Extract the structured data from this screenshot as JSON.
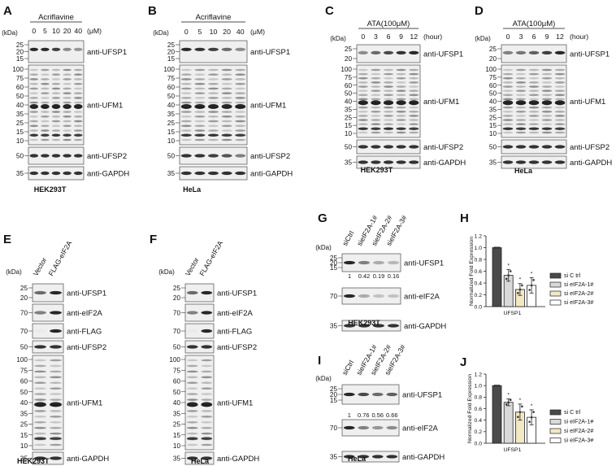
{
  "panels": {
    "A": {
      "letter": "A",
      "treatment": "Acriflavine",
      "lanes": [
        "0",
        "5",
        "10",
        "20",
        "40"
      ],
      "unit": "(μM)",
      "kda": "(kDa)",
      "cell_line": "HEK293T",
      "blots": [
        {
          "antibody": "anti-UFSP1",
          "markers": [
            "25",
            "20",
            "15"
          ]
        },
        {
          "antibody": "anti-UFM1",
          "markers": [
            "100",
            "75",
            "60",
            "50",
            "40",
            "35",
            "25",
            "15",
            "10"
          ]
        },
        {
          "antibody": "anti-UFSP2",
          "markers": [
            "50"
          ]
        },
        {
          "antibody": "anti-GAPDH",
          "markers": [
            "35"
          ]
        }
      ]
    },
    "B": {
      "letter": "B",
      "treatment": "Acriflavine",
      "lanes": [
        "0",
        "5",
        "10",
        "20",
        "40"
      ],
      "unit": "(μM)",
      "kda": "(kDa)",
      "cell_line": "HeLa",
      "blots": [
        {
          "antibody": "anti-UFSP1",
          "markers": [
            "25",
            "20",
            "15"
          ]
        },
        {
          "antibody": "anti-UFM1",
          "markers": [
            "100",
            "75",
            "60",
            "50",
            "40",
            "35",
            "25",
            "15",
            "10"
          ]
        },
        {
          "antibody": "anti-UFSP2",
          "markers": [
            "50"
          ]
        },
        {
          "antibody": "anti-GAPDH",
          "markers": [
            "35"
          ]
        }
      ]
    },
    "C": {
      "letter": "C",
      "treatment": "ATA(100μM)",
      "lanes": [
        "0",
        "3",
        "6",
        "9",
        "12"
      ],
      "unit": "(hour)",
      "kda": "(kDa)",
      "cell_line": "HEK293T",
      "blots": [
        {
          "antibody": "anti-UFSP1",
          "markers": [
            "25",
            "20"
          ]
        },
        {
          "antibody": "anti-UFM1",
          "markers": [
            "100",
            "75",
            "60",
            "50",
            "40",
            "35",
            "25",
            "15",
            "10"
          ]
        },
        {
          "antibody": "anti-UFSP2",
          "markers": [
            "50"
          ]
        },
        {
          "antibody": "anti-GAPDH",
          "markers": [
            "35"
          ]
        }
      ]
    },
    "D": {
      "letter": "D",
      "treatment": "ATA(100μM)",
      "lanes": [
        "0",
        "3",
        "6",
        "9",
        "12"
      ],
      "unit": "(hour)",
      "kda": "(kDa)",
      "cell_line": "HeLa",
      "blots": [
        {
          "antibody": "anti-UFSP1",
          "markers": [
            "25",
            "20"
          ]
        },
        {
          "antibody": "anti-UFM1",
          "markers": [
            "100",
            "75",
            "60",
            "50",
            "40",
            "35",
            "25",
            "15",
            "10"
          ]
        },
        {
          "antibody": "anti-UFSP2",
          "markers": [
            "50"
          ]
        },
        {
          "antibody": "anti-GAPDH",
          "markers": [
            "35"
          ]
        }
      ]
    },
    "E": {
      "letter": "E",
      "lanes": [
        "Vector",
        "FLAG-eIF2A"
      ],
      "kda": "(kDa)",
      "cell_line": "HEK293T",
      "blots": [
        {
          "antibody": "anti-UFSP1",
          "markers": [
            "25",
            "20"
          ]
        },
        {
          "antibody": "anti-eIF2A",
          "markers": [
            "70"
          ]
        },
        {
          "antibody": "anti-FLAG",
          "markers": [
            "70"
          ]
        },
        {
          "antibody": "anti-UFSP2",
          "markers": [
            "50"
          ]
        },
        {
          "antibody": "anti-UFM1",
          "markers": [
            "100",
            "75",
            "60",
            "50",
            "40",
            "35",
            "25",
            "15",
            "10"
          ]
        },
        {
          "antibody": "anti-GAPDH",
          "markers": [
            "35"
          ]
        }
      ]
    },
    "F": {
      "letter": "F",
      "lanes": [
        "Vector",
        "FLAG-eIF2A"
      ],
      "kda": "(kDa)",
      "cell_line": "HeLa",
      "blots": [
        {
          "antibody": "anti-UFSP1",
          "markers": [
            "25",
            "20"
          ]
        },
        {
          "antibody": "anti-eIF2A",
          "markers": [
            "70"
          ]
        },
        {
          "antibody": "anti-FLAG",
          "markers": [
            "70"
          ]
        },
        {
          "antibody": "anti-UFSP2",
          "markers": [
            "50"
          ]
        },
        {
          "antibody": "anti-UFM1",
          "markers": [
            "100",
            "75",
            "60",
            "50",
            "40",
            "35",
            "25",
            "15",
            "10"
          ]
        },
        {
          "antibody": "anti-GAPDH",
          "markers": [
            "35"
          ]
        }
      ]
    },
    "G": {
      "letter": "G",
      "lanes": [
        "siCtrl",
        "sieIF2A-1#",
        "sieIF2A-2#",
        "sieIF2A-3#"
      ],
      "kda": "(kDa)",
      "cell_line": "HEK293T",
      "quant": [
        "1",
        "0.42",
        "0.19",
        "0.16"
      ],
      "blots": [
        {
          "antibody": "anti-UFSP1",
          "markers": [
            "25",
            "20",
            "15"
          ]
        },
        {
          "antibody": "anti-eIF2A",
          "markers": [
            "70"
          ]
        },
        {
          "antibody": "anti-GAPDH",
          "markers": [
            "35"
          ]
        }
      ]
    },
    "I": {
      "letter": "I",
      "lanes": [
        "siCtrl",
        "sieIF2A-1#",
        "sieIF2A-2#",
        "sieIF2A-3#"
      ],
      "kda": "(kDa)",
      "cell_line": "HeLa",
      "quant": [
        "1",
        "0.76",
        "0.56",
        "0.66"
      ],
      "blots": [
        {
          "antibody": "anti-UFSP1",
          "markers": [
            "25",
            "20",
            "15"
          ]
        },
        {
          "antibody": "anti-eIF2A",
          "markers": [
            "70"
          ]
        },
        {
          "antibody": "anti-GAPDH",
          "markers": [
            "35"
          ]
        }
      ]
    },
    "H": {
      "letter": "H"
    },
    "J": {
      "letter": "J"
    }
  },
  "chart_data": [
    {
      "panel": "H",
      "type": "bar",
      "categories": [
        "UFSP1"
      ],
      "ylabel": "Normalized Fold Expression",
      "ylim": [
        0,
        1.2
      ],
      "yticks": [
        "0.0",
        "0.2",
        "0.4",
        "0.6",
        "0.8",
        "1.0",
        "1.2"
      ],
      "series": [
        {
          "name": "si C trl",
          "values": [
            1.0
          ],
          "error": [
            0.0
          ],
          "significance": "",
          "color": "#4a4a4a"
        },
        {
          "name": "si eIF2A-1#",
          "values": [
            0.53
          ],
          "error": [
            0.1
          ],
          "significance": "*",
          "color": "#d9d9d9"
        },
        {
          "name": "si eIF2A-2#",
          "values": [
            0.29
          ],
          "error": [
            0.1
          ],
          "significance": "*",
          "color": "#f2e8c4"
        },
        {
          "name": "si eIF2A-3#",
          "values": [
            0.36
          ],
          "error": [
            0.13
          ],
          "significance": "*",
          "color": "#ffffff"
        }
      ]
    },
    {
      "panel": "J",
      "type": "bar",
      "categories": [
        "UFSP1"
      ],
      "ylabel": "Normalized Fold Expression",
      "ylim": [
        0,
        1.2
      ],
      "yticks": [
        "0.0",
        "0.2",
        "0.4",
        "0.6",
        "0.8",
        "1.0",
        "1.2"
      ],
      "series": [
        {
          "name": "si C trl",
          "values": [
            1.0
          ],
          "error": [
            0.0
          ],
          "significance": "",
          "color": "#4a4a4a"
        },
        {
          "name": "si eIF2A-1#",
          "values": [
            0.71
          ],
          "error": [
            0.06
          ],
          "significance": "*",
          "color": "#d9d9d9"
        },
        {
          "name": "si eIF2A-2#",
          "values": [
            0.54
          ],
          "error": [
            0.14
          ],
          "significance": "*",
          "color": "#f2e8c4"
        },
        {
          "name": "si eIF2A-3#",
          "values": [
            0.45
          ],
          "error": [
            0.13
          ],
          "significance": "*",
          "color": "#ffffff"
        }
      ]
    }
  ]
}
